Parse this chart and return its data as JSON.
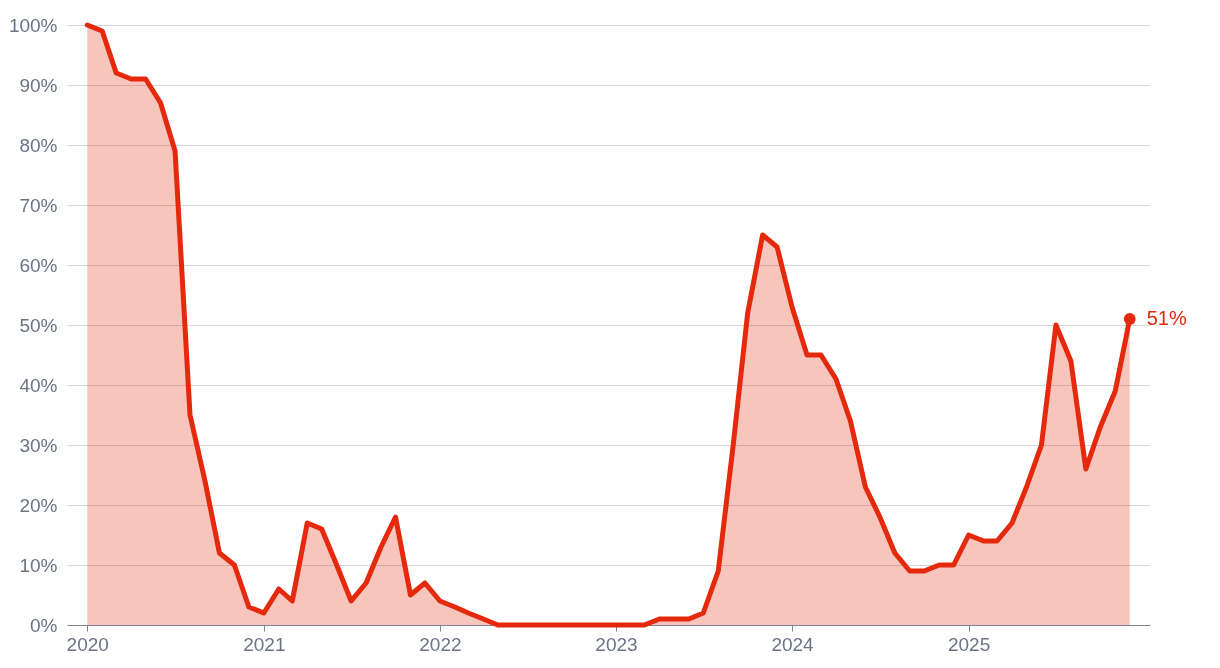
{
  "chart_data": {
    "type": "area",
    "x": [
      "2020-01",
      "2020-02",
      "2020-03",
      "2020-04",
      "2020-05",
      "2020-06",
      "2020-07",
      "2020-08",
      "2020-09",
      "2020-10",
      "2020-11",
      "2020-12",
      "2021-01",
      "2021-02",
      "2021-03",
      "2021-04",
      "2021-05",
      "2021-06",
      "2021-07",
      "2021-08",
      "2021-09",
      "2021-10",
      "2021-11",
      "2021-12",
      "2022-01",
      "2022-02",
      "2022-03",
      "2022-04",
      "2022-05",
      "2022-06",
      "2022-07",
      "2022-08",
      "2022-09",
      "2022-10",
      "2022-11",
      "2022-12",
      "2023-01",
      "2023-02",
      "2023-03",
      "2023-04",
      "2023-05",
      "2023-06",
      "2023-07",
      "2023-08",
      "2023-09",
      "2023-10",
      "2023-11",
      "2023-12",
      "2024-01",
      "2024-02",
      "2024-03",
      "2024-04",
      "2024-05",
      "2024-06",
      "2024-07",
      "2024-08",
      "2024-09",
      "2024-10",
      "2024-11",
      "2024-12",
      "2025-01",
      "2025-02",
      "2025-03",
      "2025-04",
      "2025-05",
      "2025-06",
      "2025-07",
      "2025-08",
      "2025-09",
      "2025-10",
      "2025-11",
      "2025-12"
    ],
    "series": [
      {
        "color": "#e5290c",
        "values": [
          100,
          99,
          92,
          91,
          91,
          87,
          79,
          35,
          24,
          12,
          10,
          3,
          2,
          6,
          4,
          17,
          16,
          10,
          4,
          7,
          13,
          18,
          5,
          7,
          4,
          3,
          2,
          1,
          0,
          0,
          0,
          0,
          0,
          0,
          0,
          0,
          0,
          0,
          0,
          1,
          1,
          1,
          2,
          9,
          30,
          52,
          65,
          63,
          53,
          45,
          45,
          41,
          34,
          23,
          18,
          12,
          9,
          9,
          10,
          10,
          15,
          14,
          14,
          17,
          23,
          30,
          50,
          44,
          26,
          33,
          39,
          51
        ]
      }
    ],
    "xlim": [
      "2019-11-20",
      "2026-01-12"
    ],
    "xticks": [
      "2020",
      "2021",
      "2022",
      "2023",
      "2024",
      "2025"
    ],
    "ylim": [
      0,
      100
    ],
    "yticks": [
      {
        "value": 0,
        "label": "0%"
      },
      {
        "value": 10,
        "label": "10%"
      },
      {
        "value": 20,
        "label": "20%"
      },
      {
        "value": 30,
        "label": "30%"
      },
      {
        "value": 40,
        "label": "40%"
      },
      {
        "value": 50,
        "label": "50%"
      },
      {
        "value": 60,
        "label": "60%"
      },
      {
        "value": 70,
        "label": "70%"
      },
      {
        "value": 80,
        "label": "80%"
      },
      {
        "value": 90,
        "label": "90%"
      },
      {
        "value": 100,
        "label": "100%"
      }
    ],
    "grid": "y",
    "annotations": [
      {
        "text": "51%",
        "x": "2025-12",
        "y": 51
      }
    ]
  }
}
